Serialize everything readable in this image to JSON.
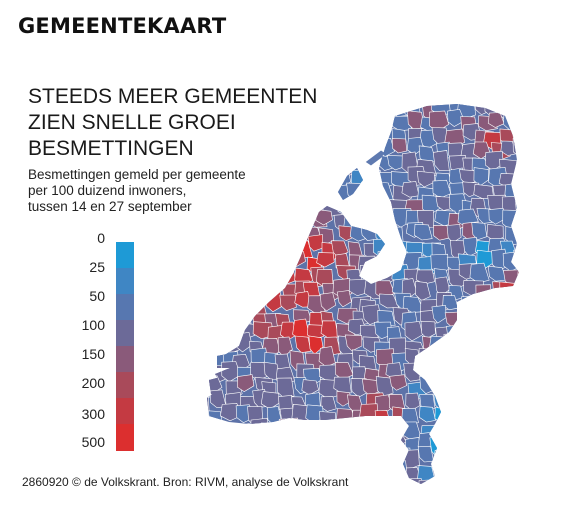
{
  "kicker": "GEMEENTEKAART",
  "headline": {
    "lines": [
      "STEEDS MEER GEMEENTEN",
      "ZIEN SNELLE GROEI",
      "BESMETTINGEN"
    ]
  },
  "subhead": {
    "lines": [
      "Besmettingen gemeld per gemeente",
      "per 100 duizend inwoners,",
      "tussen 14 en 27 september"
    ]
  },
  "legend": {
    "labels": [
      "0",
      "25",
      "50",
      "100",
      "150",
      "200",
      "300",
      "500"
    ],
    "colors": [
      "#1e9ad6",
      "#3f86c4",
      "#5777b0",
      "#6c6a98",
      "#8a5a7a",
      "#a94a5a",
      "#c43a42",
      "#dc2f2f"
    ]
  },
  "footer": "2860920 © de Volkskrant. Bron: RIVM, analyse de Volkskrant"
}
